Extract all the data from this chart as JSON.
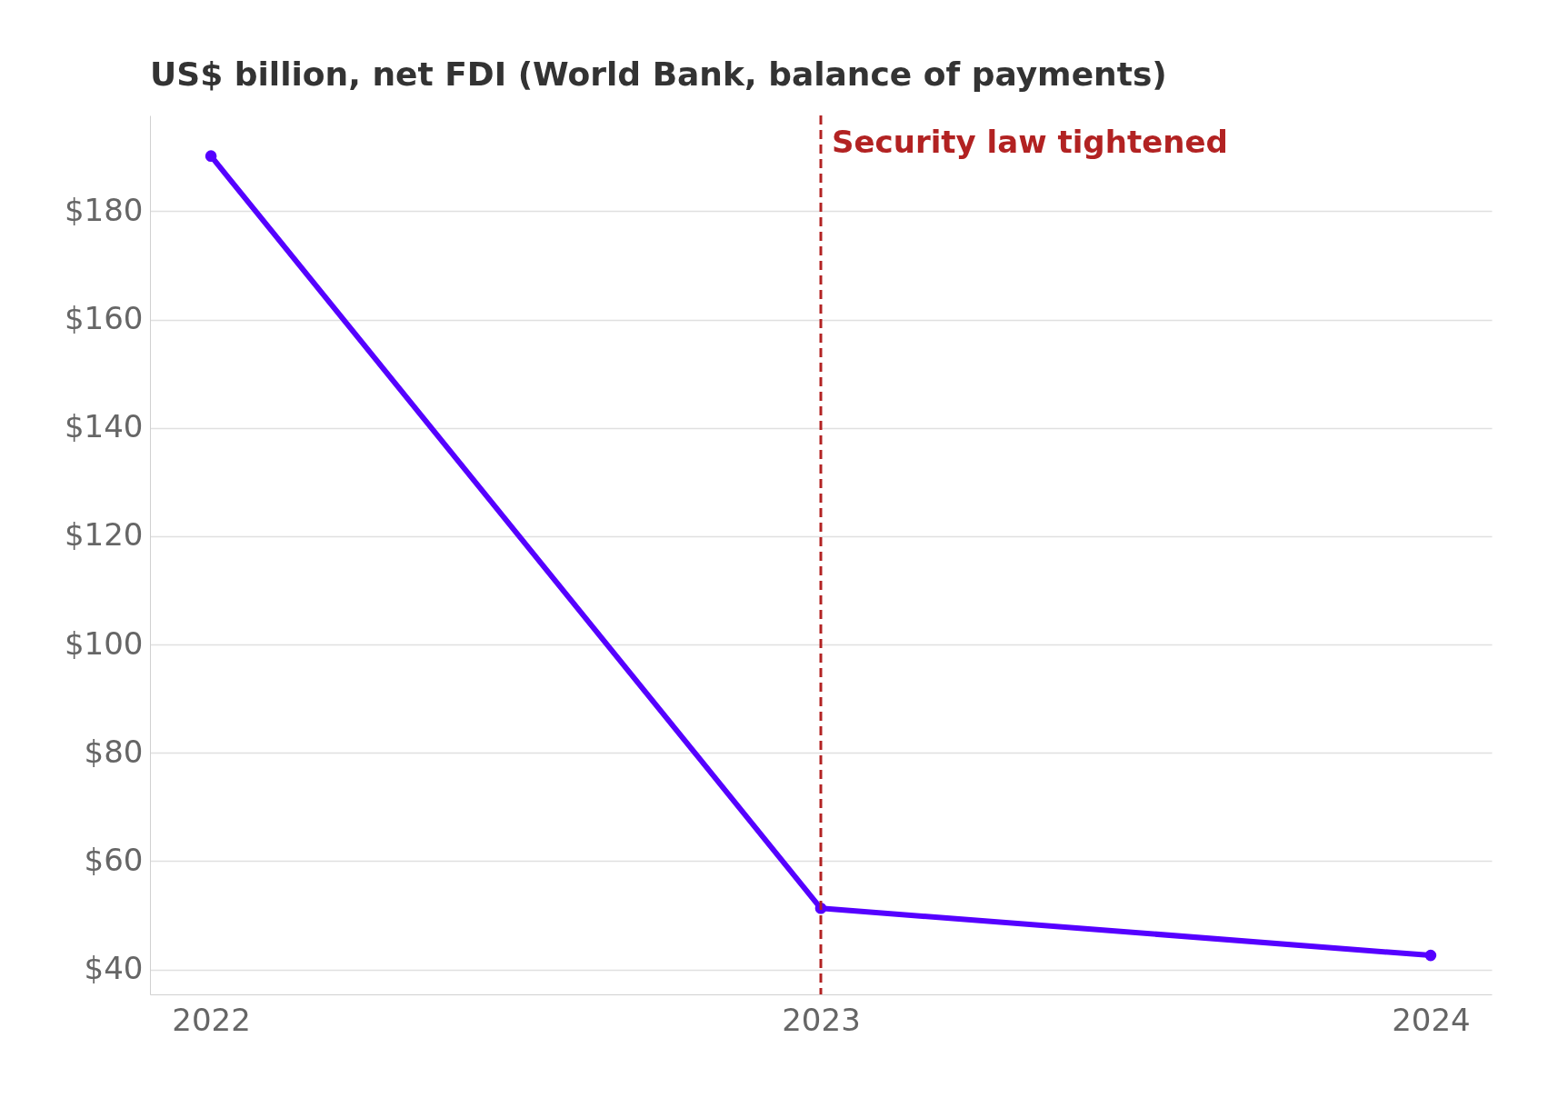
{
  "chart_data": {
    "type": "line",
    "title": "US$ billion, net FDI (World Bank, balance of payments)",
    "categories": [
      "2022",
      "2023",
      "2024"
    ],
    "series": [
      {
        "color": "#5500ff",
        "values": [
          190.2,
          51.3,
          42.6
        ]
      }
    ],
    "ylim": [
      35.4,
      197.7
    ],
    "yticks": [
      {
        "value": 40,
        "label": "$40"
      },
      {
        "value": 60,
        "label": "$60"
      },
      {
        "value": 80,
        "label": "$80"
      },
      {
        "value": 100,
        "label": "$100"
      },
      {
        "value": 120,
        "label": "$120"
      },
      {
        "value": 140,
        "label": "$140"
      },
      {
        "value": 160,
        "label": "$160"
      },
      {
        "value": 180,
        "label": "$180"
      }
    ],
    "ref_lines": [
      {
        "axis": "x",
        "value": "2023",
        "label": "Security law tightened",
        "color": "#b22222",
        "line_style": "dashed"
      }
    ],
    "grid": "y",
    "marker": "circle",
    "line_style": "solid"
  }
}
